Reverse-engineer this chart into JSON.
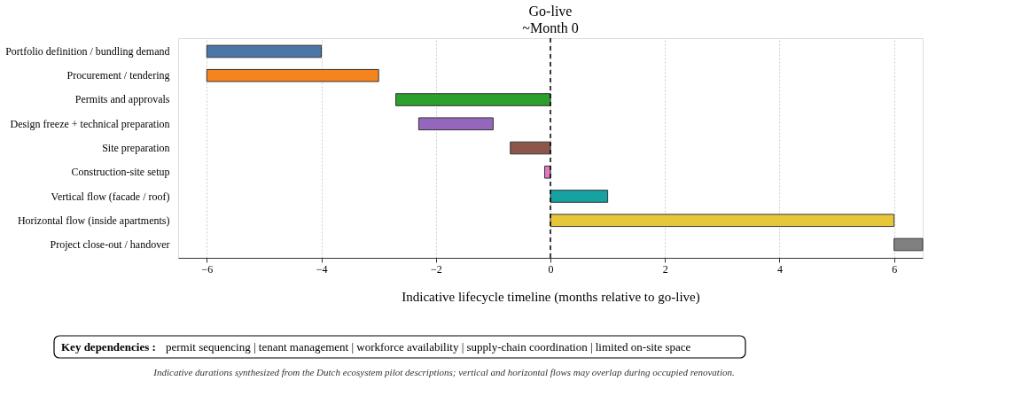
{
  "chart_data": {
    "type": "bar",
    "orientation": "horizontal",
    "categories": [
      "Portfolio definition / bundling demand",
      "Procurement / tendering",
      "Permits and approvals",
      "Design freeze + technical preparation",
      "Site preparation",
      "Construction-site setup",
      "Vertical flow (facade / roof)",
      "Horizontal flow (inside apartments)",
      "Project close-out / handover"
    ],
    "base": [
      -6,
      -6,
      -2.7,
      -2.3,
      -0.7,
      -0.1,
      0,
      0,
      6
    ],
    "values": [
      2,
      3,
      2.7,
      1.3,
      0.7,
      0.1,
      1,
      6,
      0.5
    ],
    "colors": [
      "#4a76a8",
      "#f5841f",
      "#2ca02c",
      "#9467bd",
      "#8c564b",
      "#e377c2",
      "#17a2a2",
      "#e6c73a",
      "#808080"
    ],
    "xlabel": "Indicative lifecycle timeline (months relative to go-live)",
    "xlim": [
      -6.5,
      6.5
    ],
    "xticks": [
      {
        "value": -6,
        "label": "−6"
      },
      {
        "value": -4,
        "label": "−4"
      },
      {
        "value": -2,
        "label": "−2"
      },
      0,
      2,
      4,
      6
    ],
    "grid": "x",
    "ref_lines": [
      {
        "axis": "x",
        "value": 0,
        "label": "Go-live\n~Month 0",
        "line_style": "dashed",
        "color": "#000000"
      }
    ],
    "annotations": [
      "Key dependencies :",
      "permit sequencing  |  tenant management  |  workforce availability  |  supply-chain coordination  |  limited on-site space",
      "Indicative durations synthesized from the Dutch ecosystem pilot descriptions; vertical and horizontal flows may overlap during occupied renovation."
    ]
  }
}
